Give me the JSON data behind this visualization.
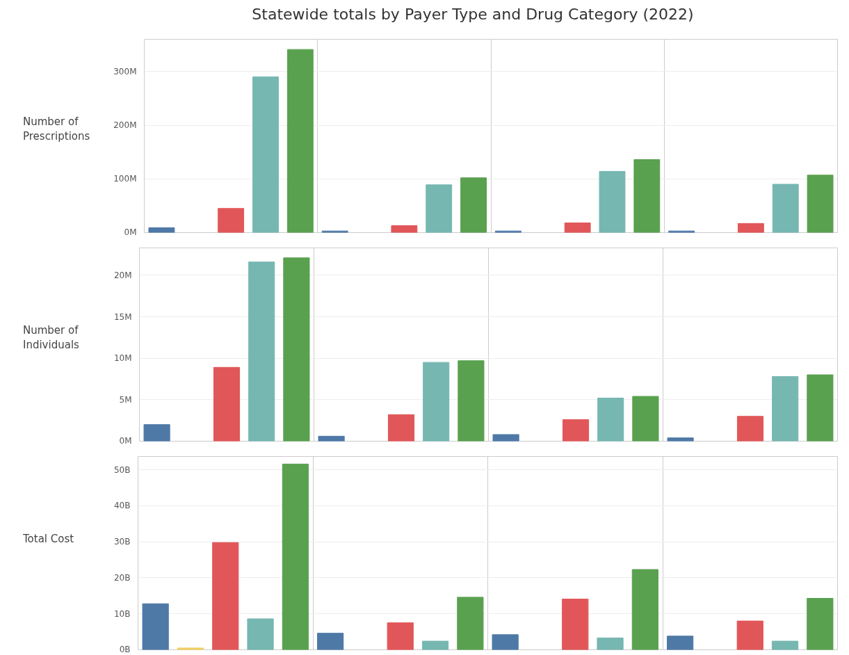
{
  "chart_data": [
    {
      "type": "bar",
      "title": "Statewide totals by Payer Type and Drug Category (2022)",
      "ylabel": "Number of Prescriptions",
      "categories": [
        null,
        null,
        null,
        null
      ],
      "series": [
        {
          "color": "#4e79a7",
          "values": [
            9,
            3,
            3,
            3
          ]
        },
        {
          "color": "#f1ce63",
          "values": [
            null,
            null,
            null,
            null
          ]
        },
        {
          "color": "#e15759",
          "values": [
            45,
            13,
            18,
            17
          ]
        },
        {
          "color": "#76b7b2",
          "values": [
            290,
            89,
            114,
            90
          ]
        },
        {
          "color": "#59a14f",
          "values": [
            341,
            102,
            136,
            107
          ]
        }
      ],
      "ylim": [
        0,
        360
      ],
      "yticks": [
        {
          "value": 0,
          "label": "0M"
        },
        {
          "value": 100,
          "label": "100M"
        },
        {
          "value": 200,
          "label": "200M"
        },
        {
          "value": 300,
          "label": "300M"
        }
      ],
      "grid": true
    },
    {
      "type": "bar",
      "ylabel": "Number of Individuals",
      "categories": [
        null,
        null,
        null,
        null
      ],
      "series": [
        {
          "color": "#4e79a7",
          "values": [
            2.0,
            0.6,
            0.8,
            0.4
          ]
        },
        {
          "color": "#f1ce63",
          "values": [
            null,
            null,
            null,
            null
          ]
        },
        {
          "color": "#e15759",
          "values": [
            8.9,
            3.2,
            2.6,
            3.0
          ]
        },
        {
          "color": "#76b7b2",
          "values": [
            21.6,
            9.5,
            5.2,
            7.8
          ]
        },
        {
          "color": "#59a14f",
          "values": [
            22.1,
            9.7,
            5.4,
            8.0
          ]
        }
      ],
      "ylim": [
        0,
        23.3
      ],
      "yticks": [
        {
          "value": 0,
          "label": "0M"
        },
        {
          "value": 5,
          "label": "5M"
        },
        {
          "value": 10,
          "label": "10M"
        },
        {
          "value": 15,
          "label": "15M"
        },
        {
          "value": 20,
          "label": "20M"
        }
      ],
      "grid": true
    },
    {
      "type": "bar",
      "ylabel": "Total Cost",
      "categories": [
        null,
        null,
        null,
        null
      ],
      "series": [
        {
          "color": "#4e79a7",
          "values": [
            12.8,
            4.6,
            4.2,
            3.8
          ]
        },
        {
          "color": "#f1ce63",
          "values": [
            0.5,
            null,
            null,
            null
          ]
        },
        {
          "color": "#e15759",
          "values": [
            29.8,
            7.5,
            14.1,
            8.0
          ]
        },
        {
          "color": "#76b7b2",
          "values": [
            8.6,
            2.4,
            3.3,
            2.4
          ]
        },
        {
          "color": "#59a14f",
          "values": [
            51.6,
            14.6,
            22.3,
            14.3
          ]
        }
      ],
      "ylim": [
        0,
        53.7
      ],
      "yticks": [
        {
          "value": 0,
          "label": "0B"
        },
        {
          "value": 10,
          "label": "10B"
        },
        {
          "value": 20,
          "label": "20B"
        },
        {
          "value": 30,
          "label": "30B"
        },
        {
          "value": 40,
          "label": "40B"
        },
        {
          "value": 50,
          "label": "50B"
        }
      ],
      "grid": true
    }
  ]
}
